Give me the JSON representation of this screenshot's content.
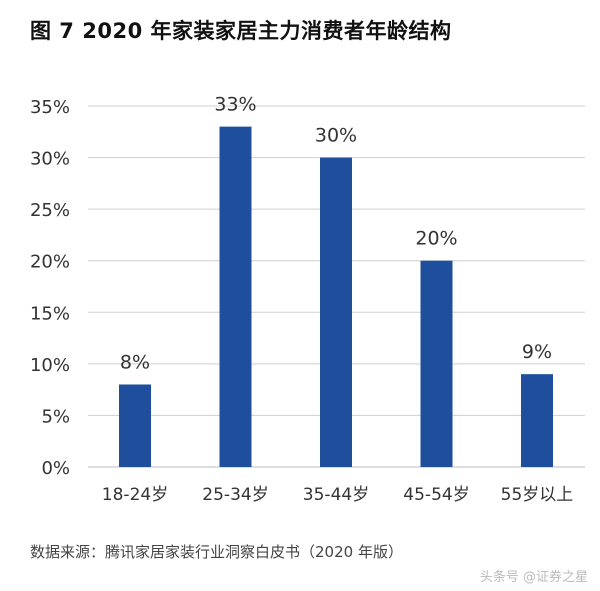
{
  "title": "图 7 2020 年家装家居主力消费者年龄结构",
  "source": "数据来源：腾讯家居家装行业洞察白皮书（2020 年版）",
  "watermark": "头条号 @证券之星",
  "colors": {
    "bar": "#1f4e9c",
    "grid": "#cfcfcf",
    "text": "#333333"
  },
  "chart_data": {
    "type": "bar",
    "title": "图 7 2020 年家装家居主力消费者年龄结构",
    "categories": [
      "18-24岁",
      "25-34岁",
      "35-44岁",
      "45-54岁",
      "55岁以上"
    ],
    "values": [
      8,
      33,
      30,
      20,
      9
    ],
    "data_labels": [
      "8%",
      "33%",
      "30%",
      "20%",
      "9%"
    ],
    "y_ticks": [
      0,
      5,
      10,
      15,
      20,
      25,
      30,
      35
    ],
    "y_tick_labels": [
      "0%",
      "5%",
      "10%",
      "15%",
      "20%",
      "25%",
      "30%",
      "35%"
    ],
    "ylim": [
      0,
      35
    ],
    "xlabel": "",
    "ylabel": "",
    "grid": true
  }
}
